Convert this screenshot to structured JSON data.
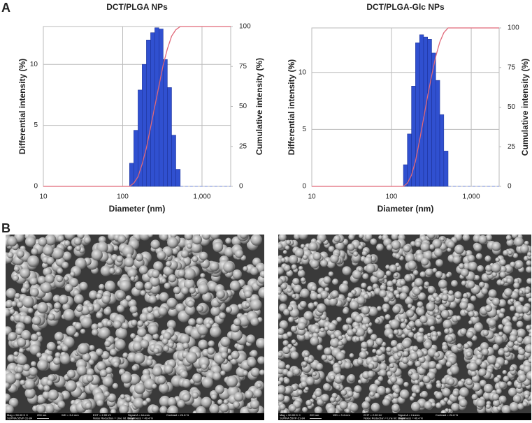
{
  "panel_labels": [
    "A",
    "B"
  ],
  "chart_data": [
    {
      "type": "histogram",
      "title": "DCT/PLGA NPs",
      "xlabel": "Diameter (nm)",
      "ylabel": "Differential intensity (%)",
      "y2label": "Cumulative intensity (%)",
      "xscale": "log",
      "xlim": [
        10,
        2300
      ],
      "xticks": [
        10,
        100,
        {
          "value": 1000,
          "label": "1,000"
        }
      ],
      "ylim": [
        0,
        13.1
      ],
      "yticks": [
        0,
        5,
        10
      ],
      "y2lim": [
        0,
        100
      ],
      "y2ticks": [
        0,
        25,
        50,
        75,
        100
      ],
      "grid": true,
      "bins": [
        122,
        138,
        156,
        176,
        199,
        225,
        254,
        287,
        324,
        366,
        414,
        468,
        532
      ],
      "values": [
        1.9,
        4.6,
        7.9,
        10.0,
        12.0,
        12.6,
        13.0,
        12.9,
        10.4,
        8.1,
        4.2,
        1.4
      ],
      "color": "#3050d0",
      "cumulative": {
        "color": "#e06878",
        "axis": "y2",
        "x": [
          10,
          122,
          138,
          156,
          176,
          199,
          225,
          254,
          287,
          324,
          366,
          414,
          468,
          532,
          2300
        ],
        "values": [
          0,
          0,
          2,
          6,
          14,
          24,
          37,
          50,
          63,
          76,
          86,
          94,
          98,
          100,
          100
        ]
      },
      "tail": {
        "color": "#8fa0e0",
        "x": [
          532,
          2300
        ],
        "values": [
          0,
          0
        ]
      }
    },
    {
      "type": "histogram",
      "title": "DCT/PLGA-Glc NPs",
      "xlabel": "Diameter (nm)",
      "ylabel": "Differential intensity (%)",
      "y2label": "Cumulative intensity (%)",
      "xscale": "log",
      "xlim": [
        10,
        2240
      ],
      "xticks": [
        10,
        100,
        {
          "value": 1000,
          "label": "1,000"
        }
      ],
      "ylim": [
        0,
        13.9
      ],
      "yticks": [
        0,
        5,
        10
      ],
      "y2lim": [
        0,
        100
      ],
      "y2ticks": [
        0,
        25,
        50,
        75,
        100
      ],
      "grid": true,
      "bins": [
        141,
        158,
        178,
        200,
        225,
        253,
        284,
        319,
        359,
        403,
        453,
        513
      ],
      "values": [
        1.9,
        4.6,
        8.8,
        12.6,
        13.3,
        13.1,
        12.9,
        11.7,
        9.3,
        6.3,
        3.1
      ],
      "color": "#3050d0",
      "cumulative": {
        "color": "#e06878",
        "axis": "y2",
        "x": [
          10,
          141,
          158,
          178,
          200,
          225,
          253,
          284,
          319,
          359,
          403,
          453,
          513,
          2240
        ],
        "values": [
          0,
          0,
          2,
          7,
          16,
          29,
          43,
          57,
          70,
          82,
          91,
          97,
          100,
          100
        ]
      },
      "tail": {
        "color": "#8fa0e0",
        "x": [
          513,
          2240
        ],
        "values": [
          0,
          0
        ]
      }
    }
  ],
  "sem_images": [
    {
      "scale": "200 nm",
      "info": [
        "Mag = 50.00 K X",
        "WD = 3.4 mm",
        "EHT = 2.00 kV",
        "Signal A = InLens",
        "Contrast = 24.8 %",
        "SUPRA 55VP-31-84",
        "Noise Reduction = Line Int. Done",
        "Brightness = 49.4 %"
      ]
    },
    {
      "scale": "200 nm",
      "info": [
        "Mag = 50.00 K X",
        "WD = 3.4 mm",
        "EHT = 2.00 kV",
        "Signal A = InLens",
        "Contrast = 24.8 %",
        "SUPRA 55VP-31-84",
        "Noise Reduction = Line Int. Done",
        "Brightness = 49.4 %"
      ]
    }
  ]
}
